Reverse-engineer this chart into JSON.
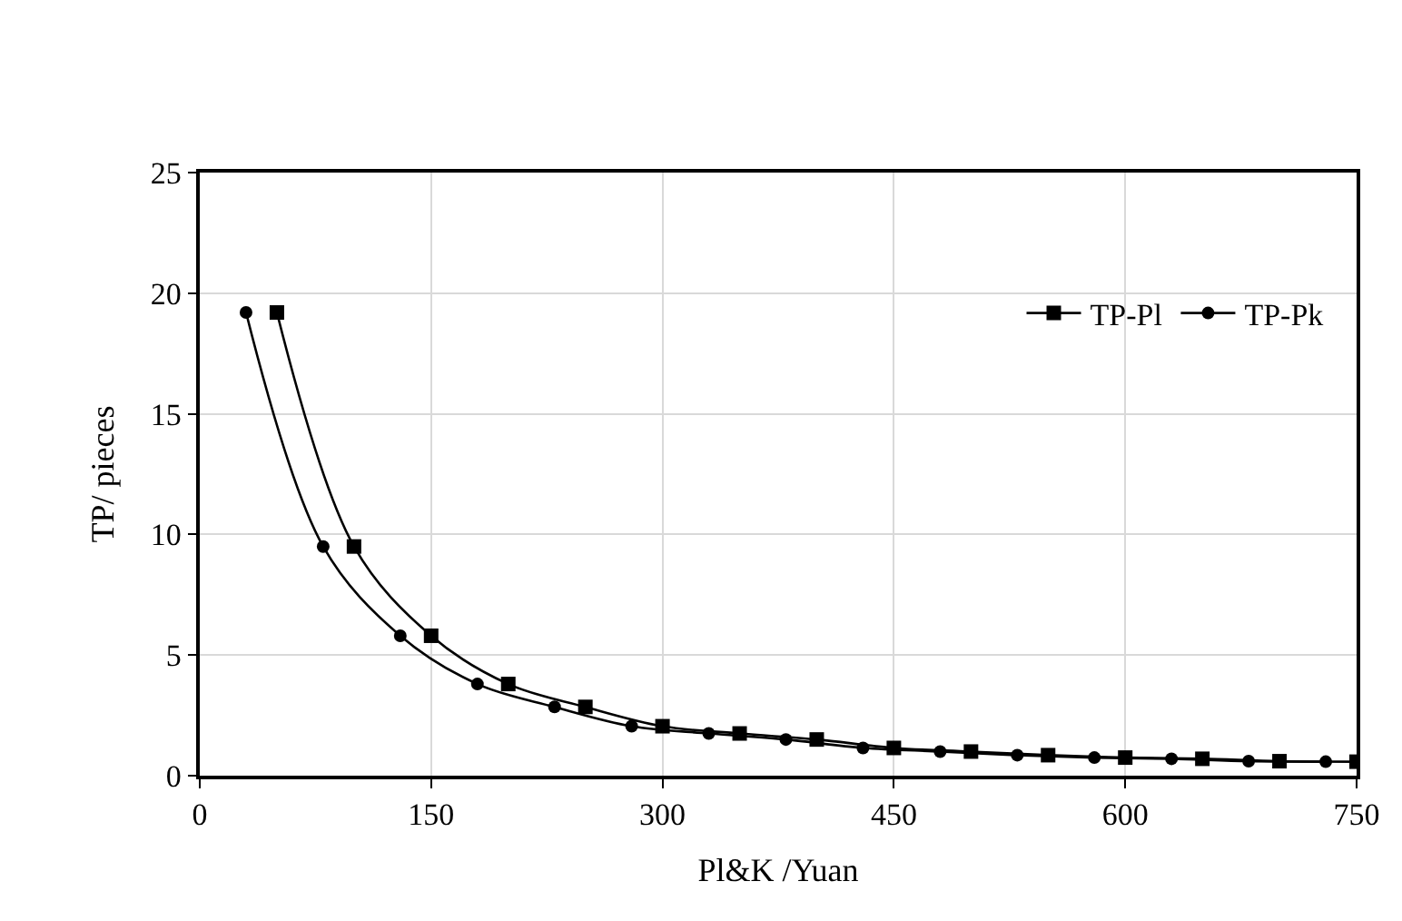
{
  "chart_data": {
    "type": "line",
    "xlabel": "Pl&K /Yuan",
    "ylabel": "TP/ pieces",
    "xlim": [
      0,
      750
    ],
    "xticks": [
      0,
      150,
      300,
      450,
      600,
      750
    ],
    "ylim": [
      0,
      25
    ],
    "yticks": [
      0,
      5,
      10,
      15,
      20,
      25
    ],
    "grid": true,
    "legend": "top right",
    "line_style": "solid",
    "series": [
      {
        "name": "TP-Pl",
        "color": "#000000",
        "marker": "square",
        "x": [
          50,
          100,
          150,
          200,
          250,
          300,
          350,
          400,
          450,
          500,
          550,
          600,
          650,
          700,
          750
        ],
        "values": [
          19.2,
          9.5,
          5.8,
          3.8,
          2.85,
          2.05,
          1.75,
          1.5,
          1.15,
          1.0,
          0.85,
          0.75,
          0.7,
          0.6,
          0.58
        ]
      },
      {
        "name": "TP-Pk",
        "color": "#000000",
        "marker": "circle",
        "x": [
          30,
          80,
          130,
          180,
          230,
          280,
          330,
          380,
          430,
          480,
          530,
          580,
          630,
          680,
          730
        ],
        "values": [
          19.2,
          9.5,
          5.8,
          3.8,
          2.85,
          2.05,
          1.75,
          1.5,
          1.15,
          1.0,
          0.85,
          0.75,
          0.7,
          0.6,
          0.58
        ]
      }
    ]
  }
}
